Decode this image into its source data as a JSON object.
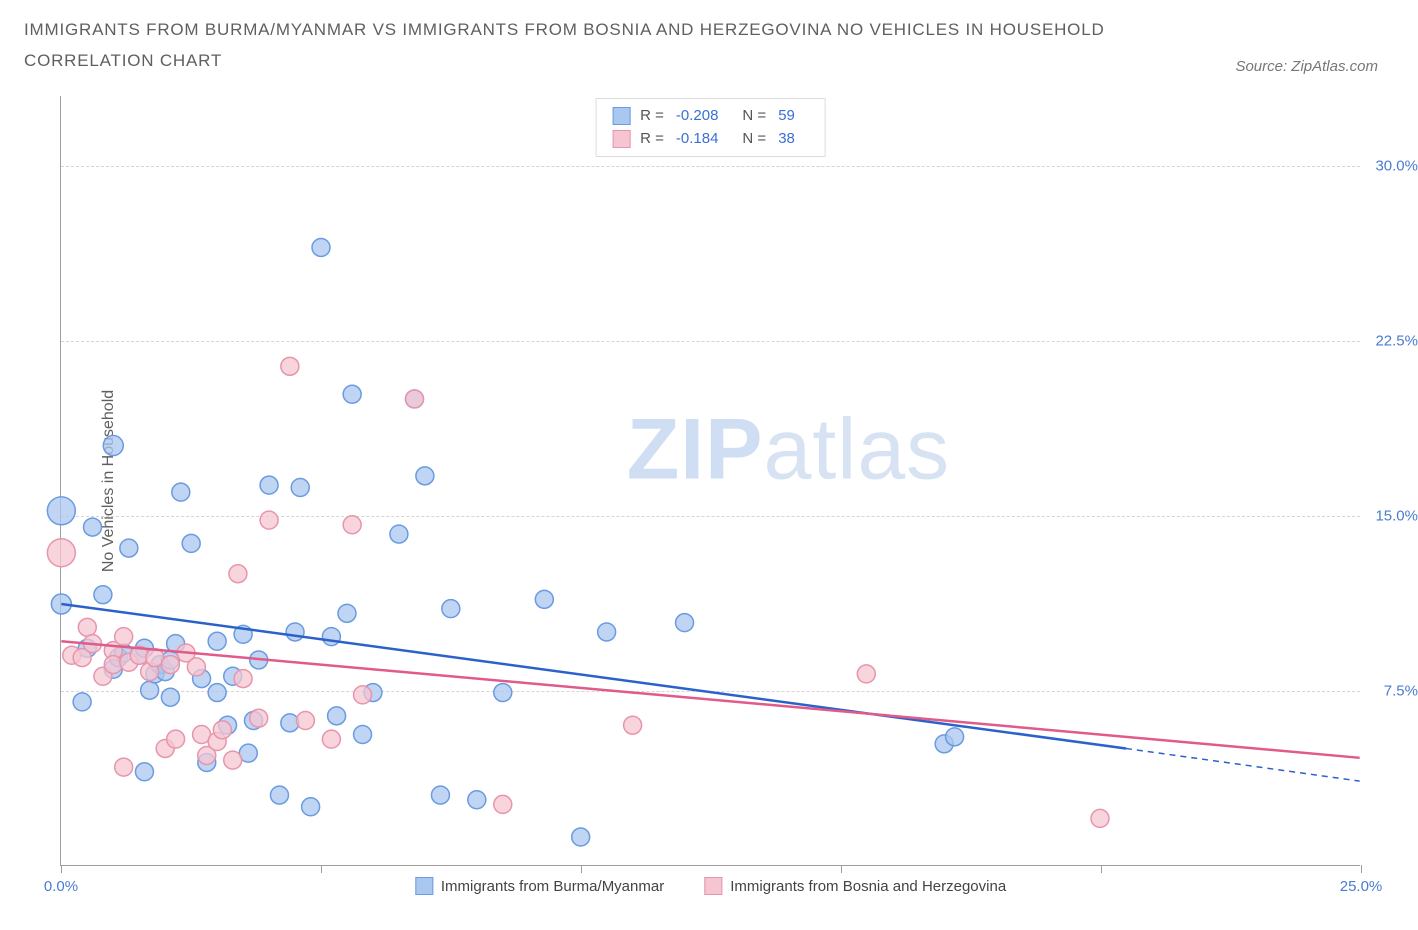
{
  "title": "IMMIGRANTS FROM BURMA/MYANMAR VS IMMIGRANTS FROM BOSNIA AND HERZEGOVINA NO VEHICLES IN HOUSEHOLD",
  "subtitle": "CORRELATION CHART",
  "source": "Source: ZipAtlas.com",
  "y_axis_label": "No Vehicles in Household",
  "watermark_zip": "ZIP",
  "watermark_atlas": "atlas",
  "chart": {
    "type": "scatter",
    "xlim": [
      0,
      25
    ],
    "ylim": [
      0,
      33
    ],
    "x_ticks": [
      0,
      5,
      10,
      15,
      20,
      25
    ],
    "x_tick_labels": [
      "0.0%",
      "",
      "",
      "",
      "",
      "25.0%"
    ],
    "y_ticks": [
      7.5,
      15.0,
      22.5,
      30.0
    ],
    "y_tick_labels": [
      "7.5%",
      "15.0%",
      "22.5%",
      "30.0%"
    ],
    "grid_color": "#d5d5d5",
    "axis_color": "#9e9e9e",
    "background_color": "#ffffff",
    "series": [
      {
        "name": "Immigrants from Burma/Myanmar",
        "legend_label": "Immigrants from Burma/Myanmar",
        "color_fill": "#a9c7ef",
        "color_stroke": "#6a9be0",
        "marker_r": 9,
        "R": "-0.208",
        "N": "59",
        "trend": {
          "x1": 0,
          "y1": 11.2,
          "x2": 20.5,
          "y2": 5.0,
          "color": "#2b62c9",
          "width": 2.5
        },
        "trend_ext": {
          "x1": 20.5,
          "y1": 5.0,
          "x2": 25,
          "y2": 3.6,
          "dash": true
        },
        "points": [
          [
            0.0,
            15.2,
            14
          ],
          [
            0.0,
            11.2,
            10
          ],
          [
            0.4,
            7.0,
            9
          ],
          [
            0.5,
            9.3,
            9
          ],
          [
            0.6,
            14.5,
            9
          ],
          [
            0.8,
            11.6,
            9
          ],
          [
            1.0,
            8.4,
            9
          ],
          [
            1.0,
            18.0,
            10
          ],
          [
            1.1,
            8.9,
            9
          ],
          [
            1.2,
            9.1,
            9
          ],
          [
            1.3,
            13.6,
            9
          ],
          [
            1.5,
            9.0,
            9
          ],
          [
            1.6,
            4.0,
            9
          ],
          [
            1.6,
            9.3,
            9
          ],
          [
            1.7,
            7.5,
            9
          ],
          [
            1.8,
            8.2,
            9
          ],
          [
            1.9,
            8.6,
            9
          ],
          [
            2.0,
            8.3,
            9
          ],
          [
            2.1,
            8.8,
            9
          ],
          [
            2.1,
            7.2,
            9
          ],
          [
            2.2,
            9.5,
            9
          ],
          [
            2.3,
            16.0,
            9
          ],
          [
            2.5,
            13.8,
            9
          ],
          [
            2.7,
            8.0,
            9
          ],
          [
            2.8,
            4.4,
            9
          ],
          [
            3.0,
            7.4,
            9
          ],
          [
            3.0,
            9.6,
            9
          ],
          [
            3.2,
            6.0,
            9
          ],
          [
            3.3,
            8.1,
            9
          ],
          [
            3.5,
            9.9,
            9
          ],
          [
            3.6,
            4.8,
            9
          ],
          [
            3.7,
            6.2,
            9
          ],
          [
            3.8,
            8.8,
            9
          ],
          [
            4.0,
            16.3,
            9
          ],
          [
            4.2,
            3.0,
            9
          ],
          [
            4.4,
            6.1,
            9
          ],
          [
            4.5,
            10.0,
            9
          ],
          [
            4.6,
            16.2,
            9
          ],
          [
            4.8,
            2.5,
            9
          ],
          [
            5.0,
            26.5,
            9
          ],
          [
            5.2,
            9.8,
            9
          ],
          [
            5.3,
            6.4,
            9
          ],
          [
            5.5,
            10.8,
            9
          ],
          [
            5.6,
            20.2,
            9
          ],
          [
            5.8,
            5.6,
            9
          ],
          [
            6.0,
            7.4,
            9
          ],
          [
            6.5,
            14.2,
            9
          ],
          [
            6.8,
            20.0,
            9
          ],
          [
            7.0,
            16.7,
            9
          ],
          [
            7.3,
            3.0,
            9
          ],
          [
            7.5,
            11.0,
            9
          ],
          [
            8.0,
            2.8,
            9
          ],
          [
            8.5,
            7.4,
            9
          ],
          [
            9.3,
            11.4,
            9
          ],
          [
            10.0,
            1.2,
            9
          ],
          [
            10.5,
            10.0,
            9
          ],
          [
            12.0,
            10.4,
            9
          ],
          [
            17.0,
            5.2,
            9
          ],
          [
            17.2,
            5.5,
            9
          ]
        ]
      },
      {
        "name": "Immigrants from Bosnia and Herzegovina",
        "legend_label": "Immigrants from Bosnia and Herzegovina",
        "color_fill": "#f5c5d1",
        "color_stroke": "#e795ac",
        "marker_r": 9,
        "R": "-0.184",
        "N": "38",
        "trend": {
          "x1": 0,
          "y1": 9.6,
          "x2": 25,
          "y2": 4.6,
          "color": "#e05a8a",
          "width": 2.5
        },
        "points": [
          [
            0.0,
            13.4,
            14
          ],
          [
            0.2,
            9.0,
            9
          ],
          [
            0.4,
            8.9,
            9
          ],
          [
            0.5,
            10.2,
            9
          ],
          [
            0.6,
            9.5,
            9
          ],
          [
            0.8,
            8.1,
            9
          ],
          [
            1.0,
            9.2,
            9
          ],
          [
            1.0,
            8.6,
            9
          ],
          [
            1.2,
            9.8,
            9
          ],
          [
            1.2,
            4.2,
            9
          ],
          [
            1.3,
            8.7,
            9
          ],
          [
            1.5,
            9.0,
            9
          ],
          [
            1.7,
            8.3,
            9
          ],
          [
            1.8,
            8.9,
            9
          ],
          [
            2.0,
            5.0,
            9
          ],
          [
            2.1,
            8.6,
            9
          ],
          [
            2.2,
            5.4,
            9
          ],
          [
            2.4,
            9.1,
            9
          ],
          [
            2.6,
            8.5,
            9
          ],
          [
            2.7,
            5.6,
            9
          ],
          [
            2.8,
            4.7,
            9
          ],
          [
            3.0,
            5.3,
            9
          ],
          [
            3.1,
            5.8,
            9
          ],
          [
            3.3,
            4.5,
            9
          ],
          [
            3.4,
            12.5,
            9
          ],
          [
            3.5,
            8.0,
            9
          ],
          [
            3.8,
            6.3,
            9
          ],
          [
            4.0,
            14.8,
            9
          ],
          [
            4.4,
            21.4,
            9
          ],
          [
            4.7,
            6.2,
            9
          ],
          [
            5.2,
            5.4,
            9
          ],
          [
            5.6,
            14.6,
            9
          ],
          [
            5.8,
            7.3,
            9
          ],
          [
            6.8,
            20.0,
            9
          ],
          [
            8.5,
            2.6,
            9
          ],
          [
            11.0,
            6.0,
            9
          ],
          [
            15.5,
            8.2,
            9
          ],
          [
            20.0,
            2.0,
            9
          ]
        ]
      }
    ]
  },
  "legend_top": {
    "r_label": "R =",
    "n_label": "N ="
  }
}
